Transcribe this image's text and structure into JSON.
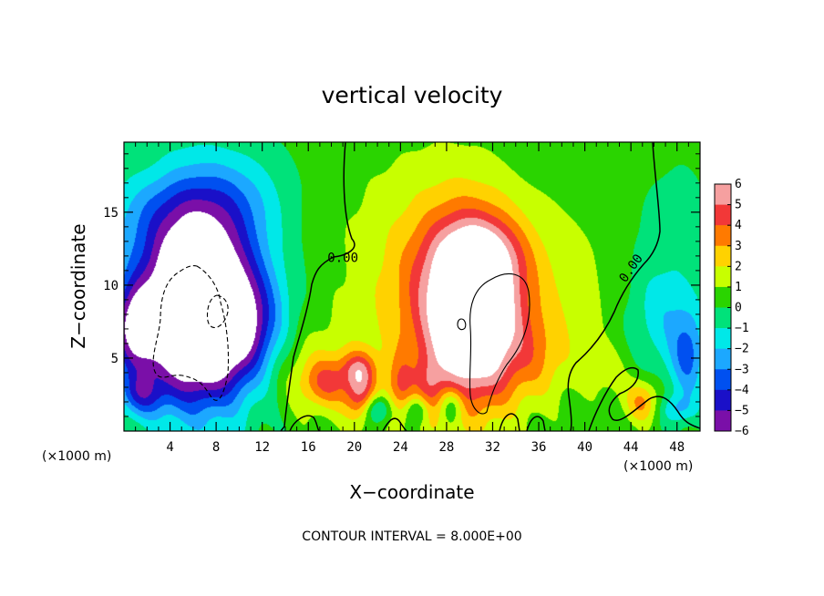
{
  "chart_data": {
    "type": "heatmap",
    "title": "vertical velocity",
    "xlabel": "X−coordinate",
    "ylabel": "Z−coordinate",
    "x_unit_label": "(×1000 m)",
    "y_unit_label": "(×1000 m)",
    "footer": "CONTOUR INTERVAL = 8.000E+00",
    "xlim": [
      0,
      50
    ],
    "ylim": [
      0,
      19.8
    ],
    "x_ticks": [
      4,
      8,
      12,
      16,
      20,
      24,
      28,
      32,
      36,
      40,
      44,
      48
    ],
    "y_ticks": [
      5,
      10,
      15
    ],
    "colorbar": {
      "ticks": [
        6,
        5,
        4,
        3,
        2,
        1,
        0,
        -1,
        -2,
        -3,
        -4,
        -5,
        -6
      ],
      "labels": [
        "6",
        "5",
        "4",
        "3",
        "2",
        "1",
        "0",
        "−1",
        "−2",
        "−3",
        "−4",
        "−5",
        "−6"
      ],
      "range": [
        -6,
        6
      ],
      "colors_top_to_bottom": [
        "#f6a0a0",
        "#f23838",
        "#ff7a00",
        "#ffd200",
        "#c8ff00",
        "#2ad400",
        "#00e27a",
        "#00e8e8",
        "#1ca8ff",
        "#0050f0",
        "#1a10c8",
        "#7a0fa8"
      ]
    },
    "contour_labels": [
      {
        "text": "0.00",
        "x": 19,
        "z": 11.6
      },
      {
        "text": "0.00",
        "x": 44.3,
        "z": 11.0
      }
    ],
    "blobs": [
      {
        "x": 25,
        "z": 10,
        "sx": 9,
        "sz": 10,
        "v": 1.2
      },
      {
        "x": 29.5,
        "z": 9.5,
        "sx": 5.5,
        "sz": 6.5,
        "v": 4
      },
      {
        "x": 30.5,
        "z": 7.5,
        "sx": 3.8,
        "sz": 5.5,
        "v": 6
      },
      {
        "x": 31,
        "z": 12,
        "sx": 3.5,
        "sz": 2.5,
        "v": 2.5
      },
      {
        "x": 39,
        "z": 10,
        "sx": 4,
        "sz": 6,
        "v": 1
      },
      {
        "x": 36,
        "z": 5,
        "sx": 3,
        "sz": 3,
        "v": 1.5
      },
      {
        "x": 16,
        "z": 4,
        "sx": 5,
        "sz": 3,
        "v": 1.5
      },
      {
        "x": 17.5,
        "z": 3.3,
        "sx": 2,
        "sz": 1.6,
        "v": 2.5
      },
      {
        "x": 20.5,
        "z": 2.5,
        "sx": 1.3,
        "sz": 1.8,
        "v": 3.5
      },
      {
        "x": 20.3,
        "z": 4.3,
        "sx": 1.5,
        "sz": 1.2,
        "v": 2.5
      },
      {
        "x": 24,
        "z": 3,
        "sx": 1.2,
        "sz": 2,
        "v": 2.5
      },
      {
        "x": 26.5,
        "z": 3,
        "sx": 1.2,
        "sz": 2,
        "v": 2
      },
      {
        "x": 45,
        "z": 2,
        "sx": 1.5,
        "sz": 1.5,
        "v": 3
      },
      {
        "x": 42,
        "z": 4,
        "sx": 2,
        "sz": 2,
        "v": 1
      },
      {
        "x": 6.5,
        "z": 8,
        "sx": 4.2,
        "sz": 5.5,
        "v": -10
      },
      {
        "x": 6,
        "z": 10,
        "sx": 7,
        "sz": 8,
        "v": -3
      },
      {
        "x": 5,
        "z": 15,
        "sx": 6,
        "sz": 3.5,
        "v": -2
      },
      {
        "x": 11,
        "z": 7,
        "sx": 3,
        "sz": 4,
        "v": -3
      },
      {
        "x": 1,
        "z": 7,
        "sx": 2,
        "sz": 3,
        "v": -5
      },
      {
        "x": 1.5,
        "z": 2.5,
        "sx": 2,
        "sz": 1.5,
        "v": -3
      },
      {
        "x": 10,
        "z": 16,
        "sx": 4,
        "sz": 3,
        "v": -1
      },
      {
        "x": 22,
        "z": 1.5,
        "sx": 1.2,
        "sz": 1,
        "v": -3
      },
      {
        "x": 25.5,
        "z": 1.5,
        "sx": 1,
        "sz": 1,
        "v": -2.5
      },
      {
        "x": 28.5,
        "z": 1.8,
        "sx": 1,
        "sz": 1.2,
        "v": -2.5
      },
      {
        "x": 47,
        "z": 8,
        "sx": 3,
        "sz": 4,
        "v": -2
      },
      {
        "x": 49,
        "z": 5,
        "sx": 1.5,
        "sz": 3,
        "v": -3
      },
      {
        "x": 48,
        "z": 1.5,
        "sx": 1.5,
        "sz": 1,
        "v": -2
      },
      {
        "x": 47.5,
        "z": 15,
        "sx": 2.5,
        "sz": 3,
        "v": -1
      },
      {
        "x": 44,
        "z": 18,
        "sx": 3,
        "sz": 2,
        "v": 0.5
      },
      {
        "x": 2,
        "z": 18,
        "sx": 3,
        "sz": 2,
        "v": 0.4
      }
    ]
  }
}
